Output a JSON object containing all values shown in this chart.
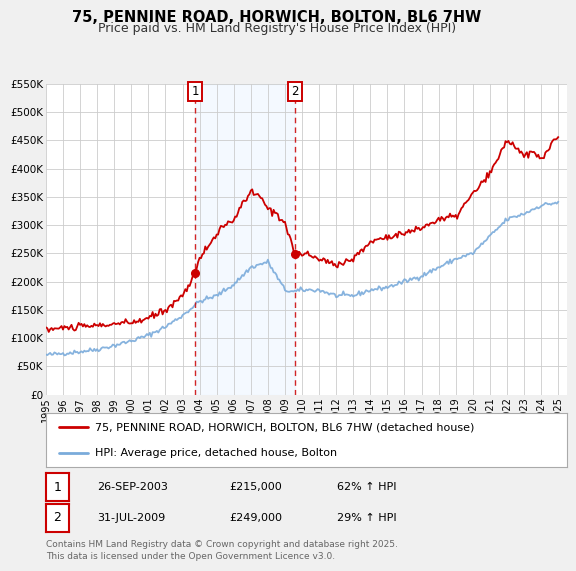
{
  "title": "75, PENNINE ROAD, HORWICH, BOLTON, BL6 7HW",
  "subtitle": "Price paid vs. HM Land Registry's House Price Index (HPI)",
  "ylim": [
    0,
    550000
  ],
  "xlim": [
    1995,
    2025.5
  ],
  "yticks": [
    0,
    50000,
    100000,
    150000,
    200000,
    250000,
    300000,
    350000,
    400000,
    450000,
    500000,
    550000
  ],
  "ytick_labels": [
    "£0",
    "£50K",
    "£100K",
    "£150K",
    "£200K",
    "£250K",
    "£300K",
    "£350K",
    "£400K",
    "£450K",
    "£500K",
    "£550K"
  ],
  "xticks": [
    1995,
    1996,
    1997,
    1998,
    1999,
    2000,
    2001,
    2002,
    2003,
    2004,
    2005,
    2006,
    2007,
    2008,
    2009,
    2010,
    2011,
    2012,
    2013,
    2014,
    2015,
    2016,
    2017,
    2018,
    2019,
    2020,
    2021,
    2022,
    2023,
    2024,
    2025
  ],
  "background_color": "#f0f0f0",
  "plot_bg_color": "#ffffff",
  "grid_color": "#cccccc",
  "sale1_x": 2003.73,
  "sale1_y": 215000,
  "sale2_x": 2009.58,
  "sale2_y": 249000,
  "sale1_date": "26-SEP-2003",
  "sale1_price": "£215,000",
  "sale1_hpi": "62% ↑ HPI",
  "sale2_date": "31-JUL-2009",
  "sale2_price": "£249,000",
  "sale2_hpi": "29% ↑ HPI",
  "property_color": "#cc0000",
  "hpi_color": "#7aabdb",
  "vline_color": "#cc0000",
  "shade_color": "#ddeeff",
  "legend_label_property": "75, PENNINE ROAD, HORWICH, BOLTON, BL6 7HW (detached house)",
  "legend_label_hpi": "HPI: Average price, detached house, Bolton",
  "footer": "Contains HM Land Registry data © Crown copyright and database right 2025.\nThis data is licensed under the Open Government Licence v3.0.",
  "title_fontsize": 10.5,
  "subtitle_fontsize": 9,
  "tick_fontsize": 7.5,
  "legend_fontsize": 8,
  "footer_fontsize": 6.5
}
